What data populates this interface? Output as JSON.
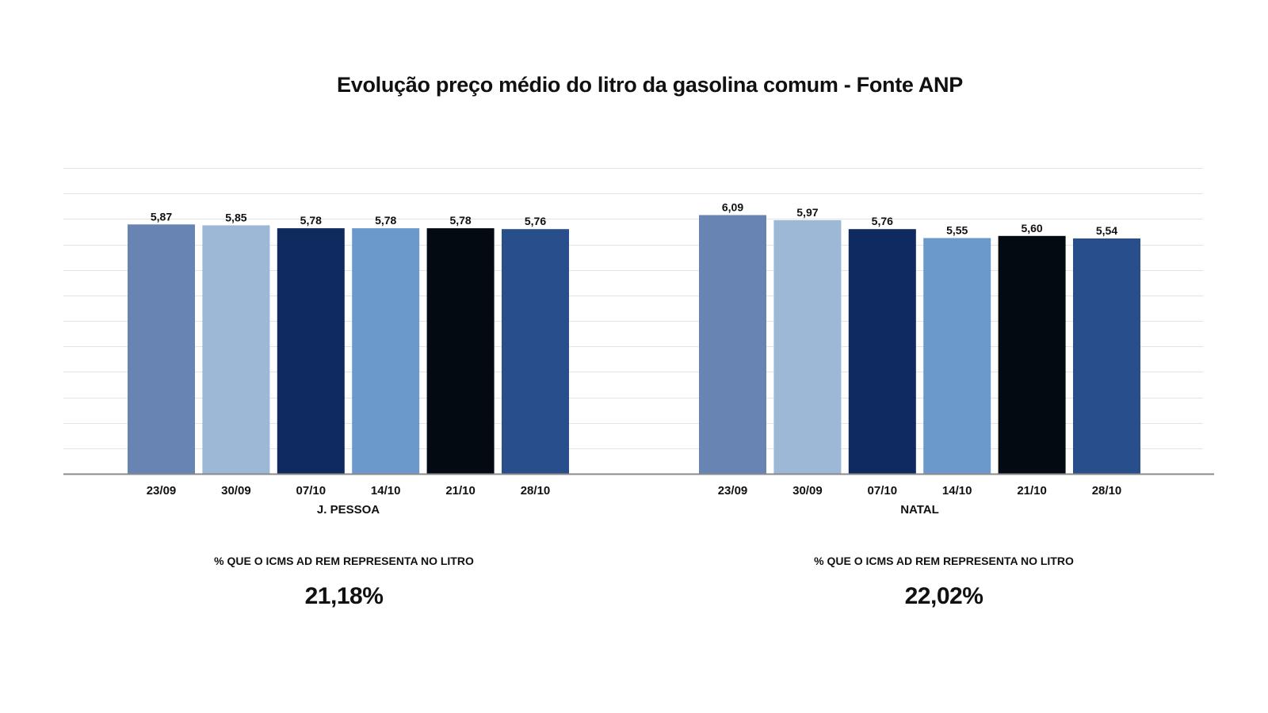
{
  "chart_data": {
    "type": "bar",
    "title": "Evolução preço médio do litro da gasolina comum - Fonte ANP",
    "xlabel": "",
    "ylabel": "",
    "ylim": [
      0,
      7.2
    ],
    "grid": true,
    "categories": [
      "23/09",
      "30/09",
      "07/10",
      "14/10",
      "21/10",
      "28/10"
    ],
    "value_labels": [
      "5,87",
      "5,85",
      "5,78",
      "5,78",
      "5,78",
      "5,76",
      "6,09",
      "5,97",
      "5,76",
      "5,55",
      "5,60",
      "5,54"
    ],
    "colors": [
      "#6784b2",
      "#9db8d7",
      "#0f2a5e",
      "#6b99cc",
      "#040a12",
      "#284f8c"
    ],
    "groups": [
      {
        "name": "J. PESSOA",
        "values": [
          5.87,
          5.85,
          5.78,
          5.78,
          5.78,
          5.76
        ]
      },
      {
        "name": "NATAL",
        "values": [
          6.09,
          5.97,
          5.76,
          5.55,
          5.6,
          5.54
        ]
      }
    ]
  },
  "icms": {
    "left": {
      "caption": "% QUE O ICMS AD REM REPRESENTA NO LITRO",
      "value": "21,18%"
    },
    "right": {
      "caption": "% QUE O ICMS AD REM REPRESENTA NO LITRO",
      "value": "22,02%"
    }
  }
}
